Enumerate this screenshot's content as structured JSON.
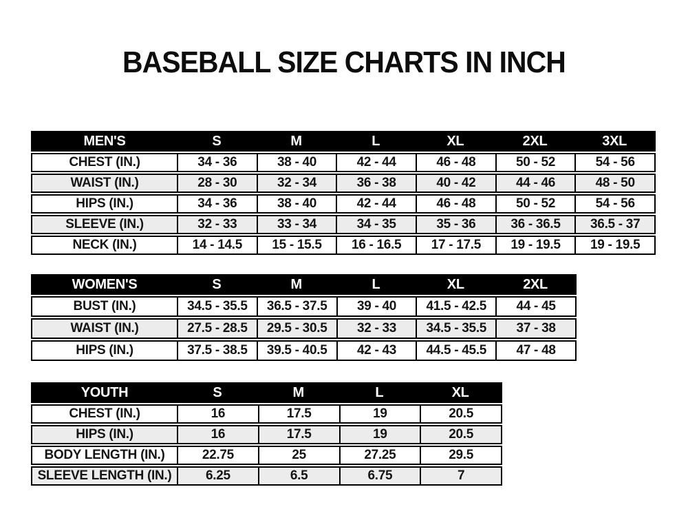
{
  "title": "BASEBALL SIZE CHARTS IN INCH",
  "units": "IN.",
  "colors": {
    "page_bg": "#ffffff",
    "header_bg": "#000000",
    "header_text": "#ffffff",
    "row_bg": "#ffffff",
    "row_alt_bg": "#ececec",
    "border": "#000000",
    "text": "#151515",
    "title_text": "#0d0d0d"
  },
  "tables": [
    {
      "name": "mens",
      "header": [
        "MEN'S",
        "S",
        "M",
        "L",
        "XL",
        "2XL",
        "3XL"
      ],
      "rows": [
        [
          "CHEST (IN.)",
          "34 - 36",
          "38 - 40",
          "42 - 44",
          "46 - 48",
          "50 - 52",
          "54 - 56"
        ],
        [
          "WAIST (IN.)",
          "28 - 30",
          "32 - 34",
          "36 - 38",
          "40 - 42",
          "44 - 46",
          "48 - 50"
        ],
        [
          "HIPS (IN.)",
          "34 - 36",
          "38 - 40",
          "42 - 44",
          "46 - 48",
          "50 - 52",
          "54 - 56"
        ],
        [
          "SLEEVE (IN.)",
          "32 - 33",
          "33 - 34",
          "34 - 35",
          "35 - 36",
          "36 - 36.5",
          "36.5 - 37"
        ],
        [
          "NECK (IN.)",
          "14 - 14.5",
          "15 - 15.5",
          "16 - 16.5",
          "17 - 17.5",
          "19 - 19.5",
          "19 - 19.5"
        ]
      ]
    },
    {
      "name": "womens",
      "header": [
        "WOMEN'S",
        "S",
        "M",
        "L",
        "XL",
        "2XL"
      ],
      "rows": [
        [
          "BUST (IN.)",
          "34.5 - 35.5",
          "36.5 - 37.5",
          "39 - 40",
          "41.5 - 42.5",
          "44 - 45"
        ],
        [
          "WAIST (IN.)",
          "27.5 - 28.5",
          "29.5 - 30.5",
          "32 - 33",
          "34.5 - 35.5",
          "37 - 38"
        ],
        [
          "HIPS (IN.)",
          "37.5 - 38.5",
          "39.5 - 40.5",
          "42 - 43",
          "44.5 - 45.5",
          "47 - 48"
        ]
      ]
    },
    {
      "name": "youth",
      "header": [
        "YOUTH",
        "S",
        "M",
        "L",
        "XL"
      ],
      "rows": [
        [
          "CHEST (IN.)",
          "16",
          "17.5",
          "19",
          "20.5"
        ],
        [
          "HIPS (IN.)",
          "16",
          "17.5",
          "19",
          "20.5"
        ],
        [
          "BODY LENGTH (IN.)",
          "22.75",
          "25",
          "27.25",
          "29.5"
        ],
        [
          "SLEEVE LENGTH (IN.)",
          "6.25",
          "6.5",
          "6.75",
          "7"
        ]
      ]
    }
  ]
}
